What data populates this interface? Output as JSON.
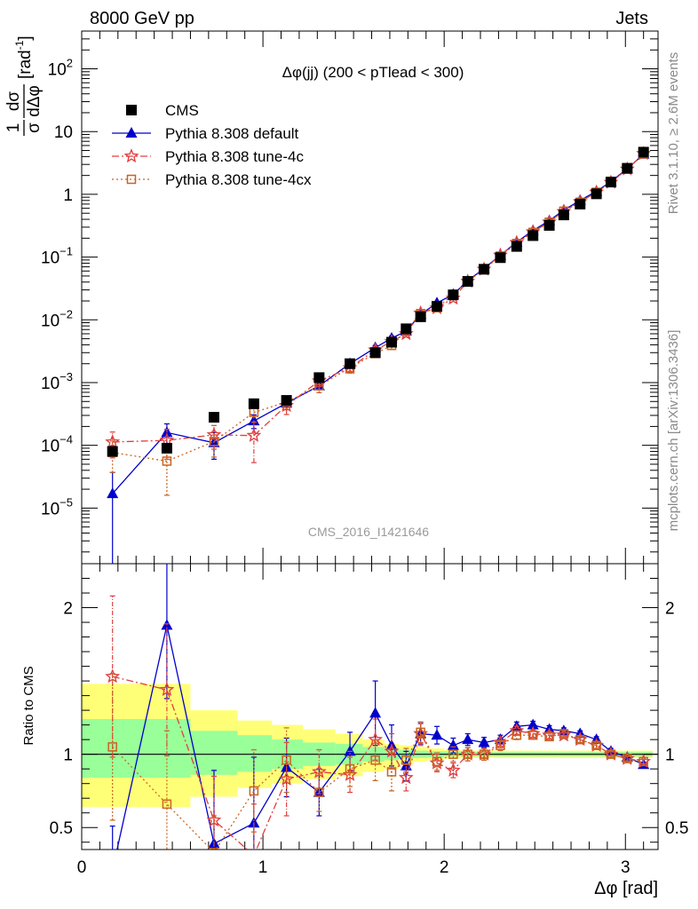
{
  "header": {
    "left": "8000 GeV pp",
    "right": "Jets"
  },
  "side": {
    "top": "Rivet 3.1.10, ≥ 2.6M events",
    "bottom": "mcplots.cern.ch [arXiv:1306.3436]"
  },
  "chart_data": [
    {
      "type": "line",
      "panel": "main",
      "title": "Δφ(jj) (200 < pTlead <  300)",
      "watermark": "CMS_2016_I1421646",
      "ylabel": {
        "frac_num": "1",
        "frac_den": "σ",
        "dnum": "dσ",
        "dden": "dΔφ",
        "unit": "[rad",
        "unit_sup": "-1",
        "unit_close": "]"
      },
      "xlabel": "",
      "y_scale": "log",
      "xlim": [
        0,
        3.18
      ],
      "ylim": [
        1.3e-06,
        400
      ],
      "y_ticks": [
        {
          "v": 1e-05,
          "base": "10",
          "exp": "−5"
        },
        {
          "v": 0.0001,
          "base": "10",
          "exp": "−4"
        },
        {
          "v": 0.001,
          "base": "10",
          "exp": "−3"
        },
        {
          "v": 0.01,
          "base": "10",
          "exp": "−2"
        },
        {
          "v": 0.1,
          "base": "10",
          "exp": "−1"
        },
        {
          "v": 1,
          "base": "1",
          "exp": ""
        },
        {
          "v": 10,
          "base": "10",
          "exp": ""
        },
        {
          "v": 100,
          "base": "10",
          "exp": "2"
        }
      ],
      "legend": {
        "placement": "top-left",
        "entries": [
          "CMS",
          "Pythia 8.308 default",
          "Pythia 8.308 tune-4c",
          "Pythia 8.308 tune-4cx"
        ]
      },
      "x": [
        0.17,
        0.47,
        0.73,
        0.95,
        1.13,
        1.31,
        1.48,
        1.62,
        1.71,
        1.79,
        1.87,
        1.96,
        2.05,
        2.13,
        2.22,
        2.31,
        2.4,
        2.49,
        2.58,
        2.66,
        2.75,
        2.84,
        2.92,
        3.01,
        3.1
      ],
      "series": [
        {
          "name": "CMS",
          "color": "#000000",
          "marker": "square-filled",
          "values": [
            8e-05,
            9e-05,
            0.00028,
            0.00046,
            0.00052,
            0.0012,
            0.002,
            0.003,
            0.0044,
            0.0072,
            0.0112,
            0.0164,
            0.025,
            0.041,
            0.064,
            0.098,
            0.148,
            0.22,
            0.32,
            0.47,
            0.7,
            1.02,
            1.57,
            2.6,
            4.7
          ]
        },
        {
          "name": "Pythia 8.308 default",
          "color": "#0000cc",
          "marker": "triangle-filled",
          "values": [
            1.7e-05,
            0.00016,
            0.00011,
            0.000245,
            0.00047,
            0.00089,
            0.002,
            0.0036,
            0.0051,
            0.0066,
            0.0122,
            0.0186,
            0.0255,
            0.042,
            0.066,
            0.107,
            0.173,
            0.265,
            0.38,
            0.56,
            0.8,
            1.12,
            1.6,
            2.55,
            4.35
          ],
          "err": [
            2e-05,
            6e-05,
            5e-05,
            6e-05,
            0.0001,
            0.00012,
            0.0002,
            0.0003,
            0.0004,
            0.0005,
            0.0006,
            0.0008,
            0.001,
            0.0015,
            0.002,
            0.003,
            0.004,
            0.006,
            0.008,
            0.01,
            0.015,
            0.02,
            0.03,
            0.04,
            0.06
          ]
        },
        {
          "name": "Pythia 8.308 tune-4c",
          "color": "#e04040",
          "marker": "star-open",
          "dash": "dashdot",
          "values": [
            0.000113,
            0.00012,
            0.000147,
            0.000143,
            0.00043,
            0.00106,
            0.00172,
            0.0033,
            0.0045,
            0.006,
            0.0128,
            0.0155,
            0.022,
            0.041,
            0.064,
            0.107,
            0.17,
            0.252,
            0.36,
            0.53,
            0.76,
            1.08,
            1.55,
            2.52,
            4.45
          ],
          "err": [
            5e-05,
            6e-05,
            6e-05,
            9e-05,
            0.00012,
            0.0002,
            0.0003,
            0.0004,
            0.0005,
            0.0006,
            0.0008,
            0.001,
            0.0012,
            0.0018,
            0.0025,
            0.003,
            0.004,
            0.006,
            0.008,
            0.01,
            0.015,
            0.02,
            0.03,
            0.04,
            0.06
          ]
        },
        {
          "name": "Pythia 8.308 tune-4cx",
          "color": "#c86420",
          "marker": "square-open",
          "dash": "dotted",
          "values": [
            7.7e-05,
            5.6e-05,
            0.000115,
            0.000335,
            0.00049,
            0.00089,
            0.00172,
            0.0029,
            0.0039,
            0.0068,
            0.0126,
            0.0156,
            0.0255,
            0.041,
            0.064,
            0.104,
            0.165,
            0.248,
            0.36,
            0.54,
            0.75,
            1.08,
            1.55,
            2.52,
            4.4
          ],
          "err": [
            4e-05,
            4e-05,
            5e-05,
            0.0001,
            0.00012,
            0.0002,
            0.0003,
            0.0004,
            0.0005,
            0.0006,
            0.0008,
            0.001,
            0.0012,
            0.0018,
            0.0025,
            0.003,
            0.004,
            0.006,
            0.008,
            0.01,
            0.015,
            0.02,
            0.03,
            0.04,
            0.06
          ]
        }
      ]
    },
    {
      "type": "line",
      "panel": "ratio",
      "ylabel": "Ratio to CMS",
      "xlabel": "Δφ [rad]",
      "xlim": [
        0,
        3.18
      ],
      "ylim": [
        0.35,
        2.3
      ],
      "x_ticks": [
        {
          "v": 0,
          "label": "0"
        },
        {
          "v": 1,
          "label": "1"
        },
        {
          "v": 2,
          "label": "2"
        },
        {
          "v": 3,
          "label": "3"
        }
      ],
      "y_ticks": [
        {
          "v": 0.5,
          "label": "0.5"
        },
        {
          "v": 1,
          "label": "1"
        },
        {
          "v": 2,
          "label": "2"
        }
      ],
      "bands": {
        "edges": [
          0,
          0.6,
          0.86,
          1.05,
          1.22,
          1.4,
          1.55,
          1.67,
          1.75,
          1.83,
          1.91,
          2.0,
          2.09,
          2.18,
          2.27,
          2.36,
          2.45,
          2.54,
          2.63,
          2.71,
          2.8,
          2.88,
          2.97,
          3.05,
          3.15
        ],
        "green": [
          [
            0.84,
            1.24
          ],
          [
            0.86,
            1.16
          ],
          [
            0.88,
            1.13
          ],
          [
            0.9,
            1.1
          ],
          [
            0.92,
            1.08
          ],
          [
            0.93,
            1.07
          ],
          [
            0.95,
            1.05
          ],
          [
            0.96,
            1.04
          ],
          [
            0.97,
            1.03
          ],
          [
            0.975,
            1.025
          ],
          [
            0.98,
            1.02
          ],
          [
            0.985,
            1.02
          ],
          [
            0.985,
            1.015
          ],
          [
            0.985,
            1.015
          ],
          [
            0.985,
            1.015
          ],
          [
            0.985,
            1.015
          ],
          [
            0.985,
            1.015
          ],
          [
            0.985,
            1.015
          ],
          [
            0.985,
            1.015
          ],
          [
            0.985,
            1.015
          ],
          [
            0.985,
            1.015
          ],
          [
            0.985,
            1.015
          ],
          [
            0.985,
            1.015
          ],
          [
            0.985,
            1.015
          ]
        ],
        "yellow": [
          [
            0.64,
            1.48
          ],
          [
            0.71,
            1.3
          ],
          [
            0.77,
            1.23
          ],
          [
            0.8,
            1.2
          ],
          [
            0.83,
            1.17
          ],
          [
            0.85,
            1.14
          ],
          [
            0.88,
            1.1
          ],
          [
            0.9,
            1.07
          ],
          [
            0.93,
            1.06
          ],
          [
            0.95,
            1.05
          ],
          [
            0.96,
            1.04
          ],
          [
            0.97,
            1.03
          ],
          [
            0.975,
            1.025
          ],
          [
            0.975,
            1.025
          ],
          [
            0.975,
            1.025
          ],
          [
            0.975,
            1.025
          ],
          [
            0.975,
            1.025
          ],
          [
            0.975,
            1.025
          ],
          [
            0.975,
            1.025
          ],
          [
            0.975,
            1.025
          ],
          [
            0.975,
            1.025
          ],
          [
            0.975,
            1.025
          ],
          [
            0.975,
            1.025
          ],
          [
            0.975,
            1.025
          ]
        ]
      },
      "x": [
        0.17,
        0.47,
        0.73,
        0.95,
        1.13,
        1.31,
        1.48,
        1.62,
        1.71,
        1.79,
        1.87,
        1.96,
        2.05,
        2.13,
        2.22,
        2.31,
        2.4,
        2.49,
        2.58,
        2.66,
        2.75,
        2.84,
        2.92,
        3.01,
        3.1
      ],
      "series": [
        {
          "name": "Pythia 8.308 default",
          "color": "#0000cc",
          "marker": "triangle-filled",
          "values": [
            0.21,
            1.88,
            0.39,
            0.53,
            0.91,
            0.74,
            1.02,
            1.28,
            1.06,
            0.92,
            1.14,
            1.13,
            1.06,
            1.1,
            1.08,
            1.1,
            1.19,
            1.2,
            1.17,
            1.16,
            1.14,
            1.1,
            1.02,
            0.98,
            0.93
          ],
          "err": [
            0.3,
            0.5,
            0.5,
            0.45,
            0.2,
            0.16,
            0.13,
            0.22,
            0.14,
            0.1,
            0.07,
            0.06,
            0.05,
            0.04,
            0.035,
            0.03,
            0.03,
            0.025,
            0.025,
            0.02,
            0.02,
            0.02,
            0.02,
            0.015,
            0.015
          ]
        },
        {
          "name": "Pythia 8.308 tune-4c",
          "color": "#e04040",
          "marker": "star-open",
          "dash": "dashdot",
          "values": [
            1.53,
            1.44,
            0.55,
            0.31,
            0.83,
            0.88,
            0.86,
            1.1,
            1.02,
            0.84,
            1.14,
            0.94,
            0.89,
            1.0,
            1.0,
            1.08,
            1.16,
            1.14,
            1.13,
            1.13,
            1.1,
            1.06,
            1.0,
            0.97,
            0.95
          ],
          "err": [
            0.55,
            0.45,
            0.3,
            0.35,
            0.25,
            0.15,
            0.12,
            0.14,
            0.12,
            0.09,
            0.08,
            0.06,
            0.05,
            0.045,
            0.04,
            0.035,
            0.03,
            0.025,
            0.025,
            0.02,
            0.02,
            0.02,
            0.02,
            0.015,
            0.015
          ]
        },
        {
          "name": "Pythia 8.308 tune-4cx",
          "color": "#c86420",
          "marker": "square-open",
          "dash": "dotted",
          "values": [
            1.05,
            0.66,
            0.33,
            0.75,
            0.96,
            0.74,
            0.9,
            0.96,
            0.88,
            0.96,
            1.15,
            0.95,
            1.0,
            1.0,
            1.0,
            1.06,
            1.13,
            1.13,
            1.12,
            1.14,
            1.1,
            1.06,
            1.0,
            0.97,
            0.95
          ],
          "err": [
            0.5,
            0.5,
            0.25,
            0.28,
            0.22,
            0.13,
            0.12,
            0.14,
            0.13,
            0.08,
            0.07,
            0.06,
            0.05,
            0.045,
            0.04,
            0.035,
            0.03,
            0.025,
            0.025,
            0.02,
            0.02,
            0.02,
            0.02,
            0.015,
            0.015
          ]
        }
      ]
    }
  ]
}
